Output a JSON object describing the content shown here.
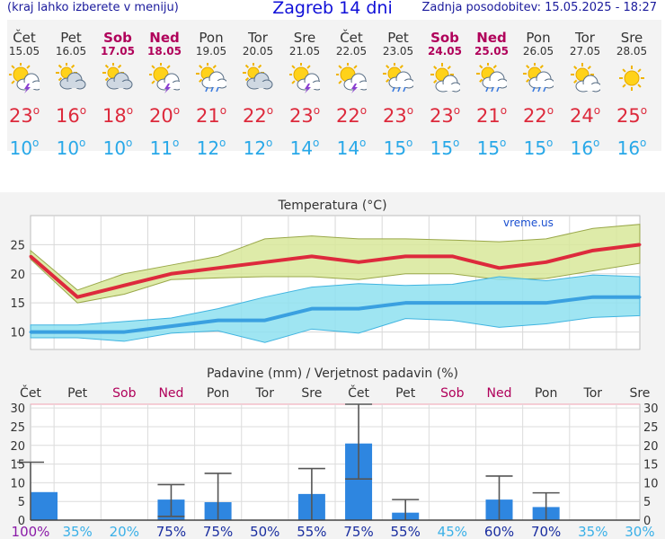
{
  "header": {
    "hint": "(kraj lahko izberete v meniju)",
    "title": "Zagreb 14 dni",
    "updated": "Zadnja posodobitev: 15.05.2025 - 18:27"
  },
  "colors": {
    "max_temp": "#dd2a3c",
    "min_temp": "#28a8e8",
    "weekend": "#b0005a",
    "precip_bar": "#2e86e0",
    "max_band": "#d8e89a",
    "min_band": "#8ee0f0"
  },
  "days": [
    {
      "name": "Čet",
      "date": "15.05",
      "weekend": false,
      "icon": "sun-cloud-lightning-icon",
      "max": "23",
      "min": "10"
    },
    {
      "name": "Pet",
      "date": "16.05",
      "weekend": false,
      "icon": "cloudy-sun-icon",
      "max": "16",
      "min": "10"
    },
    {
      "name": "Sob",
      "date": "17.05",
      "weekend": true,
      "icon": "cloudy-sun-icon",
      "max": "18",
      "min": "10"
    },
    {
      "name": "Ned",
      "date": "18.05",
      "weekend": true,
      "icon": "sun-cloud-lightning-icon",
      "max": "20",
      "min": "11"
    },
    {
      "name": "Pon",
      "date": "19.05",
      "weekend": false,
      "icon": "sun-cloud-rain-icon",
      "max": "21",
      "min": "12"
    },
    {
      "name": "Tor",
      "date": "20.05",
      "weekend": false,
      "icon": "cloudy-sun-icon",
      "max": "22",
      "min": "12"
    },
    {
      "name": "Sre",
      "date": "21.05",
      "weekend": false,
      "icon": "sun-cloud-lightning-icon",
      "max": "23",
      "min": "14"
    },
    {
      "name": "Čet",
      "date": "22.05",
      "weekend": false,
      "icon": "sun-cloud-lightning-icon",
      "max": "22",
      "min": "14"
    },
    {
      "name": "Pet",
      "date": "23.05",
      "weekend": false,
      "icon": "sun-cloud-rain-icon",
      "max": "23",
      "min": "15"
    },
    {
      "name": "Sob",
      "date": "24.05",
      "weekend": true,
      "icon": "partly-cloudy-icon",
      "max": "23",
      "min": "15"
    },
    {
      "name": "Ned",
      "date": "25.05",
      "weekend": true,
      "icon": "sun-cloud-rain-icon",
      "max": "21",
      "min": "15"
    },
    {
      "name": "Pon",
      "date": "26.05",
      "weekend": false,
      "icon": "sun-cloud-rain-icon",
      "max": "22",
      "min": "15"
    },
    {
      "name": "Tor",
      "date": "27.05",
      "weekend": false,
      "icon": "partly-cloudy-icon",
      "max": "24",
      "min": "16"
    },
    {
      "name": "Sre",
      "date": "28.05",
      "weekend": false,
      "icon": "sunny-icon",
      "max": "25",
      "min": "16"
    }
  ],
  "chart_data": [
    {
      "type": "line",
      "title": "Temperatura (°C)",
      "watermark": "vreme.us",
      "ylim": [
        7,
        30
      ],
      "yticks": [
        10,
        15,
        20,
        25
      ],
      "grid": true,
      "series": [
        {
          "values": [
            23,
            16,
            18,
            20,
            21,
            22,
            23,
            22,
            23,
            23,
            21,
            22,
            24,
            25
          ],
          "band_low": [
            22.5,
            15,
            16.5,
            19,
            19.3,
            19.5,
            19.5,
            19,
            20,
            20,
            19,
            19.2,
            20.5,
            21.8
          ],
          "band_high": [
            24,
            17.2,
            20,
            21.5,
            23,
            26,
            26.5,
            26,
            26,
            25.8,
            25.5,
            26,
            27.8,
            28.5
          ]
        },
        {
          "values": [
            10,
            10,
            10,
            11,
            12,
            12,
            14,
            14,
            15,
            15,
            15,
            15,
            16,
            16
          ],
          "band_low": [
            9,
            9,
            8.4,
            9.8,
            10.2,
            8.2,
            10.5,
            9.8,
            12.3,
            12,
            10.8,
            11.4,
            12.5,
            12.8
          ],
          "band_high": [
            11.2,
            11.2,
            11.8,
            12.4,
            14,
            16,
            17.7,
            18.3,
            18,
            18.2,
            19.5,
            18.8,
            19.8,
            19.5
          ]
        }
      ]
    },
    {
      "type": "bar",
      "title": "Padavine (mm) / Verjetnost padavin (%)",
      "categories": [
        "Čet",
        "Pet",
        "Sob",
        "Ned",
        "Pon",
        "Tor",
        "Sre",
        "Čet",
        "Pet",
        "Sob",
        "Ned",
        "Pon",
        "Tor",
        "Sre"
      ],
      "weekend": [
        false,
        false,
        true,
        true,
        false,
        false,
        false,
        false,
        false,
        true,
        true,
        false,
        false,
        false
      ],
      "ylim": [
        0,
        31
      ],
      "yticks": [
        0,
        5,
        10,
        15,
        20,
        25,
        30
      ],
      "values": [
        7.5,
        0,
        0,
        5.5,
        4.8,
        0,
        7,
        20.5,
        2,
        0,
        5.5,
        3.5,
        0,
        0
      ],
      "error_low": [
        0,
        0,
        0,
        1,
        0,
        0,
        0,
        11,
        0,
        0,
        0,
        0,
        0,
        0
      ],
      "error_high": [
        15.5,
        0,
        0,
        9.5,
        12.5,
        0,
        13.8,
        31,
        5.5,
        0,
        11.8,
        7.3,
        0,
        0
      ],
      "probability": [
        "100%",
        "35%",
        "20%",
        "75%",
        "75%",
        "50%",
        "55%",
        "75%",
        "55%",
        "45%",
        "60%",
        "70%",
        "35%",
        "30%"
      ]
    }
  ]
}
